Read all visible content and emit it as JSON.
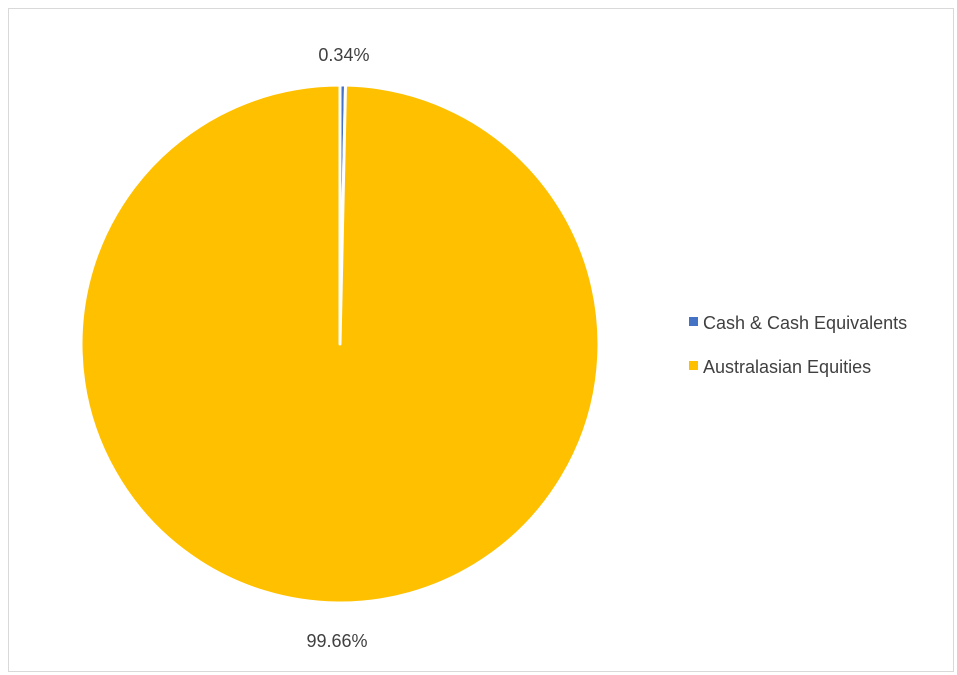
{
  "chart_data": {
    "type": "pie",
    "categories": [
      "Cash & Cash Equivalents",
      "Australasian Equities"
    ],
    "values": [
      0.34,
      99.66
    ],
    "data_labels": [
      "0.34%",
      "99.66%"
    ],
    "colors": [
      "#4472c4",
      "#ffc000"
    ],
    "title": "",
    "legend": {
      "position": "right",
      "items": [
        "Cash & Cash Equivalents",
        "Australasian Equities"
      ]
    }
  }
}
